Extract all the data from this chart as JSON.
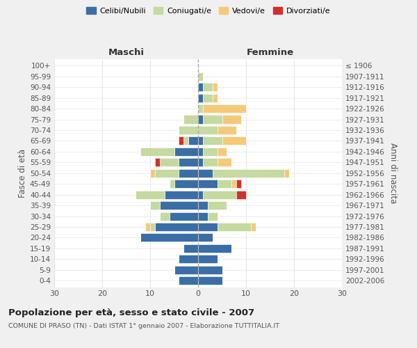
{
  "age_groups": [
    "0-4",
    "5-9",
    "10-14",
    "15-19",
    "20-24",
    "25-29",
    "30-34",
    "35-39",
    "40-44",
    "45-49",
    "50-54",
    "55-59",
    "60-64",
    "65-69",
    "70-74",
    "75-79",
    "80-84",
    "85-89",
    "90-94",
    "95-99",
    "100+"
  ],
  "birth_years": [
    "2002-2006",
    "1997-2001",
    "1992-1996",
    "1987-1991",
    "1982-1986",
    "1977-1981",
    "1972-1976",
    "1967-1971",
    "1962-1966",
    "1957-1961",
    "1952-1956",
    "1947-1951",
    "1942-1946",
    "1937-1941",
    "1932-1936",
    "1927-1931",
    "1922-1926",
    "1917-1921",
    "1912-1916",
    "1907-1911",
    "≤ 1906"
  ],
  "males": {
    "celibi": [
      4,
      5,
      4,
      3,
      12,
      9,
      6,
      8,
      7,
      5,
      4,
      4,
      5,
      2,
      0,
      0,
      0,
      0,
      0,
      0,
      0
    ],
    "coniugati": [
      0,
      0,
      0,
      0,
      0,
      1,
      2,
      2,
      6,
      1,
      5,
      4,
      7,
      1,
      4,
      3,
      0,
      0,
      0,
      0,
      0
    ],
    "vedovi": [
      0,
      0,
      0,
      0,
      0,
      1,
      0,
      0,
      0,
      0,
      1,
      0,
      0,
      0,
      0,
      0,
      0,
      0,
      0,
      0,
      0
    ],
    "divorziati": [
      0,
      0,
      0,
      0,
      0,
      0,
      0,
      0,
      0,
      0,
      0,
      1,
      0,
      1,
      0,
      0,
      0,
      0,
      0,
      0,
      0
    ]
  },
  "females": {
    "nubili": [
      5,
      5,
      4,
      7,
      3,
      4,
      2,
      2,
      1,
      4,
      3,
      1,
      1,
      1,
      0,
      1,
      0,
      1,
      1,
      0,
      0
    ],
    "coniugate": [
      0,
      0,
      0,
      0,
      0,
      7,
      2,
      4,
      7,
      3,
      15,
      3,
      3,
      4,
      4,
      4,
      1,
      2,
      2,
      1,
      0
    ],
    "vedove": [
      0,
      0,
      0,
      0,
      0,
      1,
      0,
      0,
      0,
      1,
      1,
      3,
      2,
      5,
      4,
      4,
      9,
      1,
      1,
      0,
      0
    ],
    "divorziate": [
      0,
      0,
      0,
      0,
      0,
      0,
      0,
      0,
      2,
      1,
      0,
      0,
      0,
      0,
      0,
      0,
      0,
      0,
      0,
      0,
      0
    ]
  },
  "colors": {
    "celibi_nubili": "#3a6ea5",
    "coniugati": "#c5d9a0",
    "vedovi": "#f5c97a",
    "divorziati": "#d0312d"
  },
  "title": "Popolazione per età, sesso e stato civile - 2007",
  "subtitle": "COMUNE DI PRASO (TN) - Dati ISTAT 1° gennaio 2007 - Elaborazione TUTTITALIA.IT",
  "xlabel_left": "Maschi",
  "xlabel_right": "Femmine",
  "ylabel_left": "Fasce di età",
  "ylabel_right": "Anni di nascita",
  "xlim": 30,
  "background_color": "#f0f0f0",
  "plot_bg": "#ffffff"
}
